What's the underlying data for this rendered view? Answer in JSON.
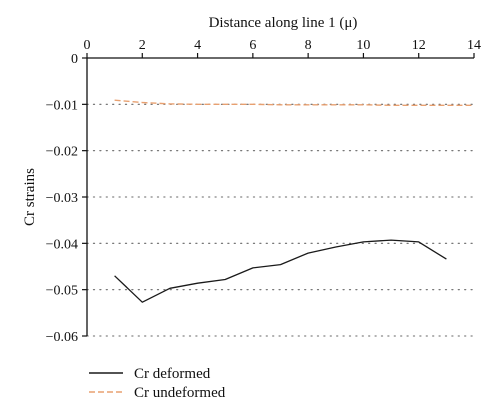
{
  "chart_data": {
    "type": "line",
    "xlabel": "Distance along line 1 (μ)",
    "ylabel": "Cr strains",
    "xlim": [
      0,
      14
    ],
    "ylim": [
      -0.06,
      0
    ],
    "x_ticks": [
      0,
      2,
      4,
      6,
      8,
      10,
      12,
      14
    ],
    "y_ticks": [
      0,
      -0.01,
      -0.02,
      -0.03,
      -0.04,
      -0.05,
      -0.06
    ],
    "x_tick_labels": [
      "0",
      "2",
      "4",
      "6",
      "8",
      "10",
      "12",
      "14"
    ],
    "y_tick_labels": [
      "0",
      "−0.01",
      "−0.02",
      "−0.03",
      "−0.04",
      "−0.05",
      "−0.06"
    ],
    "x_axis_position": "top",
    "grid": "horizontal dotted",
    "legend_position": "bottom-left",
    "series": [
      {
        "name": "Cr deformed",
        "style": "solid",
        "color": "#1a1a1a",
        "x": [
          1,
          2,
          3,
          4,
          5,
          6,
          7,
          8,
          9,
          10,
          11,
          12,
          13
        ],
        "y": [
          -0.047,
          -0.0527,
          -0.0497,
          -0.0486,
          -0.0478,
          -0.0453,
          -0.0446,
          -0.0421,
          -0.0408,
          -0.0397,
          -0.0393,
          -0.0397,
          -0.0434
        ]
      },
      {
        "name": "Cr undeformed",
        "style": "dashed",
        "color": "#e8a070",
        "x": [
          1,
          2,
          3,
          4,
          5,
          6,
          7,
          8,
          9,
          10,
          11,
          12,
          13,
          14
        ],
        "y": [
          -0.0091,
          -0.0096,
          -0.0099,
          -0.01,
          -0.01,
          -0.01,
          -0.0101,
          -0.0101,
          -0.0101,
          -0.0101,
          -0.0102,
          -0.0102,
          -0.0102,
          -0.0102
        ]
      }
    ]
  }
}
